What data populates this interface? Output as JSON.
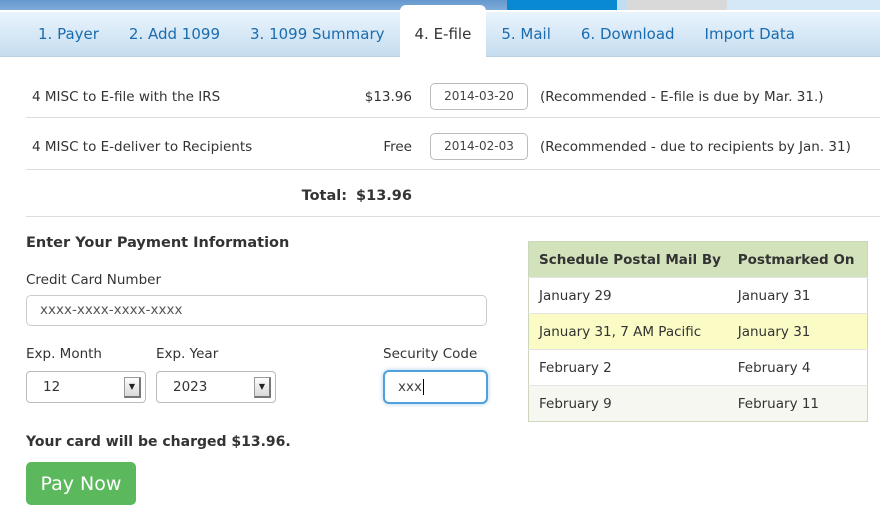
{
  "tabs": {
    "items": [
      {
        "label": "1. Payer"
      },
      {
        "label": "2. Add 1099"
      },
      {
        "label": "3. 1099 Summary"
      },
      {
        "label": "4. E-file",
        "active": true
      },
      {
        "label": "5. Mail"
      },
      {
        "label": "6. Download"
      },
      {
        "label": "Import Data"
      }
    ]
  },
  "efile_summary": {
    "rows": [
      {
        "label": "4 MISC to E-file with the IRS",
        "amount": "$13.96",
        "date": "2014-03-20",
        "note": "(Recommended - E-file is due by Mar. 31.)"
      },
      {
        "label": "4 MISC to E-deliver to Recipients",
        "amount": "Free",
        "date": "2014-02-03",
        "note": "(Recommended - due to recipients by Jan. 31)"
      }
    ],
    "total": {
      "label": "Total:",
      "value": "$13.96"
    }
  },
  "payment": {
    "heading": "Enter Your Payment Information",
    "cc_label": "Credit Card Number",
    "cc_value": "xxxx-xxxx-xxxx-xxxx",
    "month_label": "Exp. Month",
    "month_value": "12",
    "year_label": "Exp. Year",
    "year_value": "2023",
    "code_label": "Security Code",
    "code_value": "xxx",
    "charge_note": "Your card will be charged $13.96.",
    "pay_button": "Pay Now"
  },
  "postal_table": {
    "headers": [
      "Schedule Postal Mail By",
      "Postmarked On"
    ],
    "rows": [
      {
        "mail_by": "January 29",
        "postmarked": "January 31",
        "highlight": false
      },
      {
        "mail_by": "January 31, 7 AM Pacific",
        "postmarked": "January 31",
        "highlight": true
      },
      {
        "mail_by": "February 2",
        "postmarked": "February 4",
        "highlight": false
      },
      {
        "mail_by": "February 9",
        "postmarked": "February 11",
        "highlight": false
      }
    ]
  },
  "colors": {
    "tab_text_blue": "#1a6cae",
    "active_strip_blue": "#0989d1",
    "strip_medium_blue": "#74a4d6",
    "pay_button_green": "#5cb85c",
    "table_header_green": "#d2e2ba",
    "highlight_yellow": "#fbfbc6",
    "focus_border_blue": "#50a0dc"
  }
}
